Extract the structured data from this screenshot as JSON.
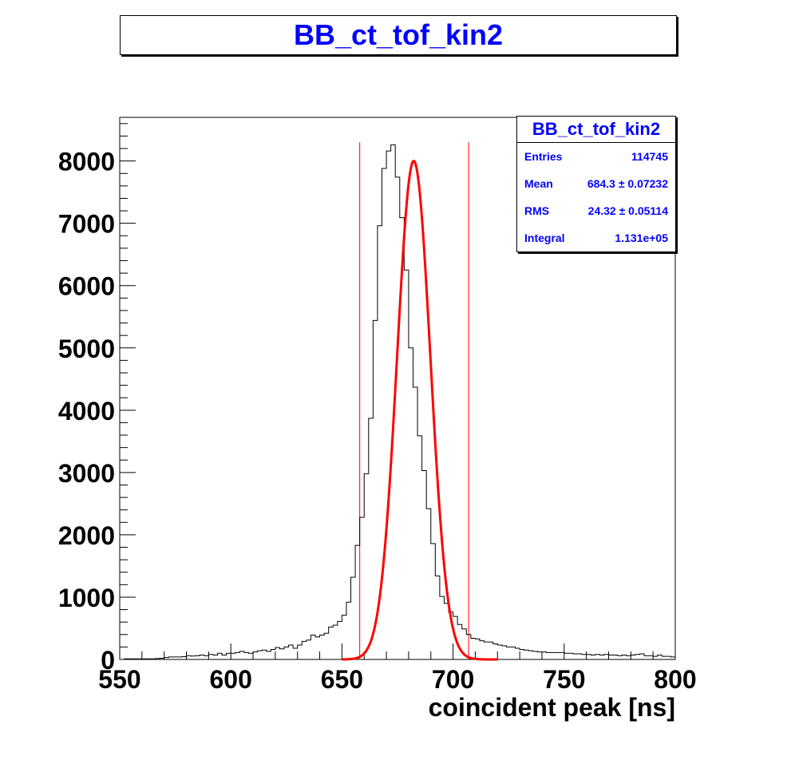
{
  "chart_data": {
    "type": "bar",
    "title": "BB_ct_tof_kin2",
    "xlabel": "coincident peak [ns]",
    "ylabel": "",
    "xlim": [
      550,
      800
    ],
    "ylim": [
      0,
      8700
    ],
    "x_ticks": [
      550,
      600,
      650,
      700,
      750,
      800
    ],
    "y_ticks": [
      0,
      1000,
      2000,
      3000,
      4000,
      5000,
      6000,
      7000,
      8000
    ],
    "histogram": {
      "bin_width": 2,
      "bin_start": 550,
      "values": [
        0,
        10,
        10,
        10,
        10,
        10,
        10,
        10,
        15,
        20,
        30,
        40,
        40,
        40,
        45,
        60,
        55,
        60,
        70,
        60,
        80,
        70,
        100,
        70,
        100,
        100,
        110,
        130,
        110,
        100,
        120,
        140,
        150,
        130,
        160,
        190,
        170,
        200,
        230,
        180,
        230,
        290,
        310,
        390,
        360,
        390,
        420,
        520,
        550,
        610,
        710,
        920,
        1320,
        1830,
        2280,
        2980,
        3870,
        5440,
        6960,
        7880,
        8160,
        8260,
        7740,
        7090,
        6250,
        5000,
        4370,
        3590,
        3030,
        2420,
        1860,
        1340,
        1010,
        900,
        760,
        690,
        560,
        490,
        400,
        340,
        330,
        300,
        280,
        280,
        250,
        230,
        220,
        200,
        200,
        180,
        160,
        150,
        140,
        130,
        120,
        120,
        110,
        110,
        110,
        110,
        100,
        100,
        90,
        90,
        80,
        80,
        70,
        80,
        70,
        80,
        70,
        70,
        60,
        70,
        60,
        70,
        80,
        90,
        60,
        60,
        50,
        70,
        50,
        50,
        40
      ]
    },
    "fit": {
      "type": "gaussian",
      "amplitude": 8000,
      "mean": 682.3,
      "sigma": 7.5,
      "range": [
        650,
        720
      ],
      "color": "#ff0000"
    },
    "cut_lines": [
      658,
      707
    ],
    "cut_line_color": "#ff0000"
  },
  "stats": {
    "title": "BB_ct_tof_kin2",
    "rows": [
      {
        "label": "Entries",
        "value": "114745"
      },
      {
        "label": "Mean",
        "value": "684.3 ± 0.07232"
      },
      {
        "label": "RMS",
        "value": "24.32 ± 0.05114"
      },
      {
        "label": "Integral",
        "value": "1.131e+05"
      }
    ]
  },
  "colors": {
    "title_text": "#0000ff",
    "histogram_line": "#000000"
  }
}
